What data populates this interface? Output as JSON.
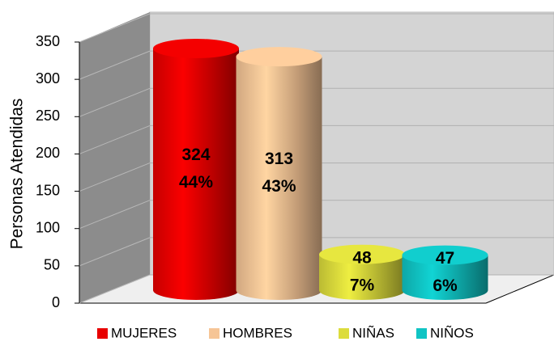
{
  "chart_data": {
    "type": "bar3d",
    "y_axis_label": "Personas Atendidas",
    "categories": [
      "MUJERES",
      "HOMBRES",
      "NIÑAS",
      "NIÑOS"
    ],
    "values": [
      324,
      313,
      48,
      47
    ],
    "colors": [
      "#e80000",
      "#f6c596",
      "#dcdc3c",
      "#10c4c4"
    ],
    "percentages": [
      44,
      43,
      7,
      6
    ],
    "percentage_labels": [
      "44%",
      "43%",
      "7%",
      "6%"
    ],
    "ylim": [
      0,
      350
    ],
    "yticks": [
      0,
      50,
      100,
      150,
      200,
      250,
      300,
      350
    ],
    "grid": true,
    "legend": "bottom"
  }
}
